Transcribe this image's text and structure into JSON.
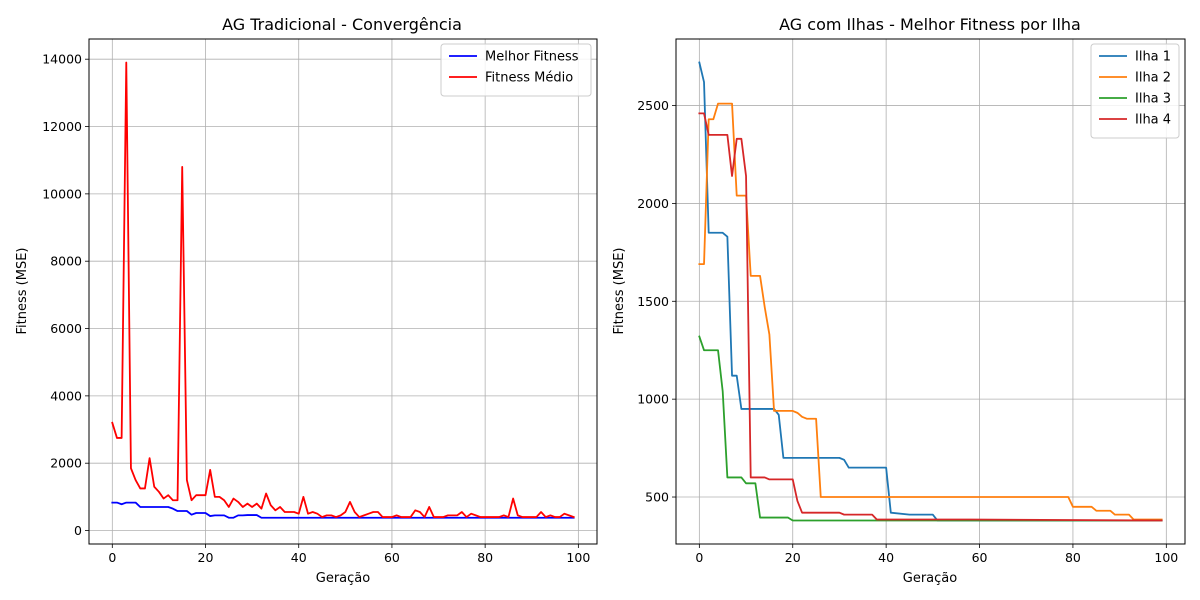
{
  "chart_data": [
    {
      "type": "line",
      "title": "AG Tradicional - Convergência",
      "xlabel": "Geração",
      "ylabel": "Fitness (MSE)",
      "xlim": [
        -5,
        104
      ],
      "ylim": [
        -400,
        14600
      ],
      "xticks": [
        0,
        20,
        40,
        60,
        80,
        100
      ],
      "yticks": [
        0,
        2000,
        4000,
        6000,
        8000,
        10000,
        12000,
        14000
      ],
      "grid": true,
      "legend_position": "top-right",
      "series": [
        {
          "name": "Melhor Fitness",
          "color": "#0000ff",
          "x": [
            0,
            1,
            2,
            3,
            4,
            5,
            6,
            7,
            8,
            9,
            10,
            11,
            12,
            13,
            14,
            15,
            16,
            17,
            18,
            19,
            20,
            21,
            22,
            23,
            24,
            25,
            26,
            27,
            28,
            29,
            30,
            31,
            32,
            33,
            34,
            35,
            36,
            37,
            38,
            39,
            40,
            41,
            42,
            43,
            44,
            45,
            46,
            47,
            48,
            49,
            50,
            51,
            52,
            53,
            54,
            55,
            56,
            57,
            58,
            59,
            60,
            61,
            62,
            63,
            64,
            65,
            66,
            67,
            68,
            69,
            70,
            71,
            72,
            73,
            74,
            75,
            76,
            77,
            78,
            79,
            80,
            81,
            82,
            83,
            84,
            85,
            86,
            87,
            88,
            89,
            90,
            91,
            92,
            93,
            94,
            95,
            96,
            97,
            98,
            99
          ],
          "y": [
            830,
            830,
            780,
            830,
            830,
            830,
            700,
            700,
            700,
            700,
            700,
            700,
            700,
            650,
            580,
            580,
            580,
            470,
            520,
            520,
            520,
            430,
            450,
            450,
            450,
            380,
            380,
            450,
            450,
            460,
            460,
            460,
            380,
            380,
            380,
            380,
            380,
            380,
            380,
            380,
            380,
            380,
            380,
            380,
            380,
            380,
            380,
            380,
            380,
            380,
            380,
            380,
            380,
            380,
            380,
            380,
            380,
            380,
            380,
            380,
            380,
            380,
            380,
            380,
            380,
            380,
            380,
            380,
            380,
            380,
            380,
            380,
            380,
            380,
            380,
            380,
            380,
            380,
            380,
            380,
            380,
            380,
            380,
            380,
            380,
            380,
            380,
            380,
            380,
            380,
            380,
            380,
            380,
            380,
            380,
            380,
            380,
            380,
            380,
            380
          ]
        },
        {
          "name": "Fitness Médio",
          "color": "#ff0000",
          "x": [
            0,
            1,
            2,
            3,
            4,
            5,
            6,
            7,
            8,
            9,
            10,
            11,
            12,
            13,
            14,
            15,
            16,
            17,
            18,
            19,
            20,
            21,
            22,
            23,
            24,
            25,
            26,
            27,
            28,
            29,
            30,
            31,
            32,
            33,
            34,
            35,
            36,
            37,
            38,
            39,
            40,
            41,
            42,
            43,
            44,
            45,
            46,
            47,
            48,
            49,
            50,
            51,
            52,
            53,
            54,
            55,
            56,
            57,
            58,
            59,
            60,
            61,
            62,
            63,
            64,
            65,
            66,
            67,
            68,
            69,
            70,
            71,
            72,
            73,
            74,
            75,
            76,
            77,
            78,
            79,
            80,
            81,
            82,
            83,
            84,
            85,
            86,
            87,
            88,
            89,
            90,
            91,
            92,
            93,
            94,
            95,
            96,
            97,
            98,
            99
          ],
          "y": [
            3200,
            2750,
            2750,
            13900,
            1850,
            1500,
            1250,
            1250,
            2150,
            1300,
            1150,
            950,
            1050,
            900,
            900,
            10800,
            1500,
            900,
            1050,
            1050,
            1050,
            1800,
            1000,
            1000,
            900,
            700,
            950,
            850,
            700,
            800,
            700,
            800,
            650,
            1100,
            750,
            600,
            700,
            550,
            550,
            550,
            500,
            1000,
            500,
            550,
            500,
            400,
            450,
            450,
            400,
            450,
            550,
            850,
            550,
            400,
            450,
            500,
            550,
            550,
            400,
            400,
            400,
            450,
            400,
            400,
            400,
            600,
            550,
            400,
            700,
            400,
            400,
            400,
            450,
            450,
            450,
            550,
            400,
            500,
            450,
            400,
            400,
            400,
            400,
            400,
            450,
            400,
            950,
            450,
            400,
            400,
            400,
            400,
            550,
            400,
            450,
            400,
            400,
            500,
            450,
            400
          ]
        }
      ]
    },
    {
      "type": "line",
      "title": "AG com Ilhas - Melhor Fitness por Ilha",
      "xlabel": "Geração",
      "ylabel": "Fitness (MSE)",
      "xlim": [
        -5,
        104
      ],
      "ylim": [
        260,
        2840
      ],
      "xticks": [
        0,
        20,
        40,
        60,
        80,
        100
      ],
      "yticks": [
        500,
        1000,
        1500,
        2000,
        2500
      ],
      "grid": true,
      "legend_position": "top-right",
      "series": [
        {
          "name": "Ilha 1",
          "color": "#1f77b4",
          "x": [
            0,
            1,
            2,
            5,
            6,
            7,
            8,
            9,
            16,
            17,
            18,
            30,
            31,
            32,
            40,
            41,
            45,
            50,
            51,
            99
          ],
          "y": [
            2720,
            2620,
            1850,
            1850,
            1830,
            1120,
            1120,
            950,
            950,
            920,
            700,
            700,
            690,
            650,
            650,
            420,
            410,
            410,
            380,
            380
          ]
        },
        {
          "name": "Ilha 2",
          "color": "#ff7f0e",
          "x": [
            0,
            1,
            2,
            3,
            4,
            7,
            8,
            10,
            11,
            13,
            14,
            15,
            16,
            20,
            21,
            22,
            23,
            25,
            26,
            79,
            80,
            84,
            85,
            88,
            89,
            92,
            93,
            99
          ],
          "y": [
            1690,
            1690,
            2430,
            2430,
            2510,
            2510,
            2040,
            2040,
            1630,
            1630,
            1470,
            1330,
            940,
            940,
            930,
            910,
            900,
            900,
            500,
            500,
            450,
            450,
            430,
            430,
            410,
            410,
            385,
            385
          ]
        },
        {
          "name": "Ilha 3",
          "color": "#2ca02c",
          "x": [
            0,
            1,
            4,
            5,
            6,
            9,
            10,
            12,
            13,
            19,
            20,
            99
          ],
          "y": [
            1320,
            1250,
            1250,
            1040,
            600,
            600,
            570,
            570,
            395,
            395,
            380,
            380
          ]
        },
        {
          "name": "Ilha 4",
          "color": "#d62728",
          "x": [
            0,
            1,
            2,
            6,
            7,
            8,
            9,
            10,
            11,
            14,
            15,
            20,
            21,
            22,
            28,
            30,
            31,
            37,
            38,
            58,
            99
          ],
          "y": [
            2460,
            2460,
            2350,
            2350,
            2140,
            2330,
            2330,
            2140,
            600,
            600,
            590,
            590,
            480,
            420,
            420,
            420,
            410,
            410,
            385,
            385,
            380
          ]
        }
      ]
    }
  ]
}
